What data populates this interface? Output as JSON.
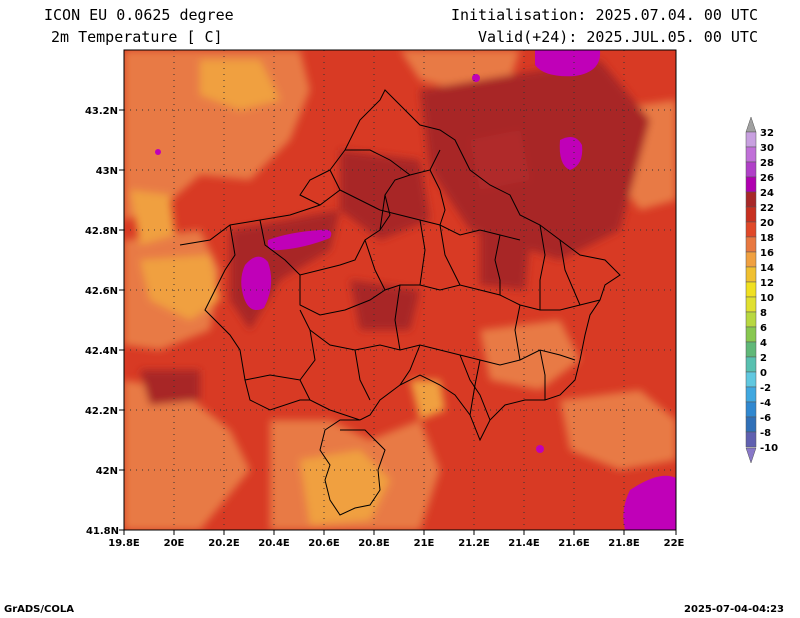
{
  "header": {
    "model": "ICON EU 0.0625 degree",
    "variable": "2m Temperature [ C]",
    "init": "Initialisation: 2025.07.04. 00 UTC",
    "valid": "Valid(+24): 2025.JUL.05. 00 UTC"
  },
  "map": {
    "lon_range": [
      19.8,
      22.0
    ],
    "lat_range": [
      41.8,
      43.4
    ],
    "lon_ticks": [
      "19.8E",
      "20E",
      "20.2E",
      "20.4E",
      "20.6E",
      "20.8E",
      "21E",
      "21.2E",
      "21.4E",
      "21.6E",
      "21.8E",
      "22E"
    ],
    "lat_ticks": [
      "41.8N",
      "42N",
      "42.2N",
      "42.4N",
      "42.6N",
      "42.8N",
      "43N",
      "43.2N"
    ],
    "grid": "dotted"
  },
  "colorbar": {
    "labels": [
      "32",
      "30",
      "28",
      "26",
      "24",
      "22",
      "20",
      "18",
      "16",
      "14",
      "12",
      "10",
      "8",
      "6",
      "4",
      "2",
      "0",
      "-2",
      "-4",
      "-6",
      "-8",
      "-10"
    ],
    "colors": [
      "#c8a0e0",
      "#c070d8",
      "#b040c8",
      "#b000b0",
      "#a82828",
      "#c83020",
      "#e04828",
      "#e87840",
      "#f0a040",
      "#f0c030",
      "#f0e020",
      "#e0e030",
      "#b8d840",
      "#88c850",
      "#60b878",
      "#58c0b0",
      "#60c8e0",
      "#40a8e0",
      "#3088d0",
      "#3070b8",
      "#6060b0"
    ]
  },
  "footer": {
    "left": "GrADS/COLA",
    "right": "2025-07-04-04:23"
  }
}
